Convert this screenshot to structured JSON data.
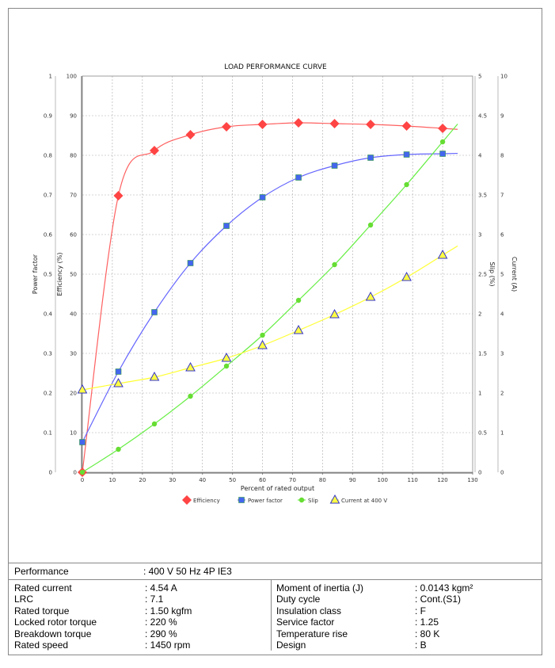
{
  "chart_data": {
    "type": "line",
    "title": "LOAD PERFORMANCE CURVE",
    "xlabel": "Percent of rated output",
    "xlim": [
      0,
      130
    ],
    "xticks": [
      0,
      10,
      20,
      30,
      40,
      50,
      60,
      70,
      80,
      90,
      100,
      110,
      120,
      130
    ],
    "grid": true,
    "legend_position": "bottom",
    "axes": {
      "power_factor": {
        "label": "Power factor",
        "side": "left",
        "lim": [
          0,
          1
        ],
        "ticks": [
          "0",
          "0.1",
          "0.2",
          "0.3",
          "0.4",
          "0.5",
          "0.6",
          "0.7",
          "0.8",
          "0.9",
          "1"
        ]
      },
      "efficiency": {
        "label": "Efficiency (%)",
        "side": "left",
        "lim": [
          0,
          100
        ],
        "ticks": [
          "0",
          "10",
          "20",
          "30",
          "40",
          "50",
          "60",
          "70",
          "80",
          "90",
          "100"
        ]
      },
      "slip": {
        "label": "Slip (%)",
        "side": "right",
        "lim": [
          0,
          5
        ],
        "ticks": [
          "0",
          "0.5",
          "1",
          "1.5",
          "2",
          "2.5",
          "3",
          "3.5",
          "4",
          "4.5",
          "5"
        ]
      },
      "current": {
        "label": "Current (A)",
        "side": "right",
        "lim": [
          0,
          10
        ],
        "ticks": [
          "0",
          "1",
          "2",
          "3",
          "4",
          "5",
          "6",
          "7",
          "8",
          "9",
          "10"
        ]
      }
    },
    "x": [
      0,
      12,
      24,
      36,
      48,
      60,
      72,
      84,
      96,
      108,
      120
    ],
    "series": [
      {
        "name": "Efficiency",
        "axis": "efficiency",
        "color": "#ff4444",
        "line": "#ff6060",
        "marker": "diamond",
        "values": [
          0,
          69.8,
          81.2,
          85.2,
          87.2,
          87.8,
          88.2,
          88.0,
          87.8,
          87.4,
          86.8
        ]
      },
      {
        "name": "Power factor",
        "axis": "power_factor",
        "color": "#4466ee",
        "line": "#6666ff",
        "marker": "square",
        "values": [
          0.076,
          0.254,
          0.404,
          0.528,
          0.622,
          0.694,
          0.744,
          0.774,
          0.794,
          0.802,
          0.804
        ]
      },
      {
        "name": "Slip",
        "axis": "slip",
        "color": "#66dd33",
        "line": "#66ee44",
        "marker": "circle",
        "values": [
          0,
          0.29,
          0.61,
          0.96,
          1.34,
          1.73,
          2.17,
          2.62,
          3.12,
          3.63,
          4.17
        ]
      },
      {
        "name": "Current at 400 V",
        "axis": "current",
        "color": "#ffff44",
        "line": "#ffff33",
        "marker": "triangle",
        "values": [
          2.08,
          2.24,
          2.4,
          2.64,
          2.88,
          3.2,
          3.58,
          3.98,
          4.42,
          4.92,
          5.48
        ]
      }
    ]
  },
  "table": {
    "performance": {
      "label": "Performance",
      "value": ": 400 V 50 Hz 4P IE3"
    },
    "left": [
      {
        "label": "Rated current",
        "value": ": 4.54 A"
      },
      {
        "label": "LRC",
        "value": ": 7.1"
      },
      {
        "label": "Rated torque",
        "value": ": 1.50 kgfm"
      },
      {
        "label": "Locked rotor torque",
        "value": ": 220 %"
      },
      {
        "label": "Breakdown torque",
        "value": ": 290 %"
      },
      {
        "label": "Rated speed",
        "value": ": 1450 rpm"
      }
    ],
    "right": [
      {
        "label": "Moment of inertia (J)",
        "value": ": 0.0143 kgm²"
      },
      {
        "label": "Duty cycle",
        "value": ": Cont.(S1)"
      },
      {
        "label": "Insulation class",
        "value": ": F"
      },
      {
        "label": "Service factor",
        "value": ": 1.25"
      },
      {
        "label": "Temperature rise",
        "value": ": 80 K"
      },
      {
        "label": "Design",
        "value": ": B"
      }
    ]
  }
}
